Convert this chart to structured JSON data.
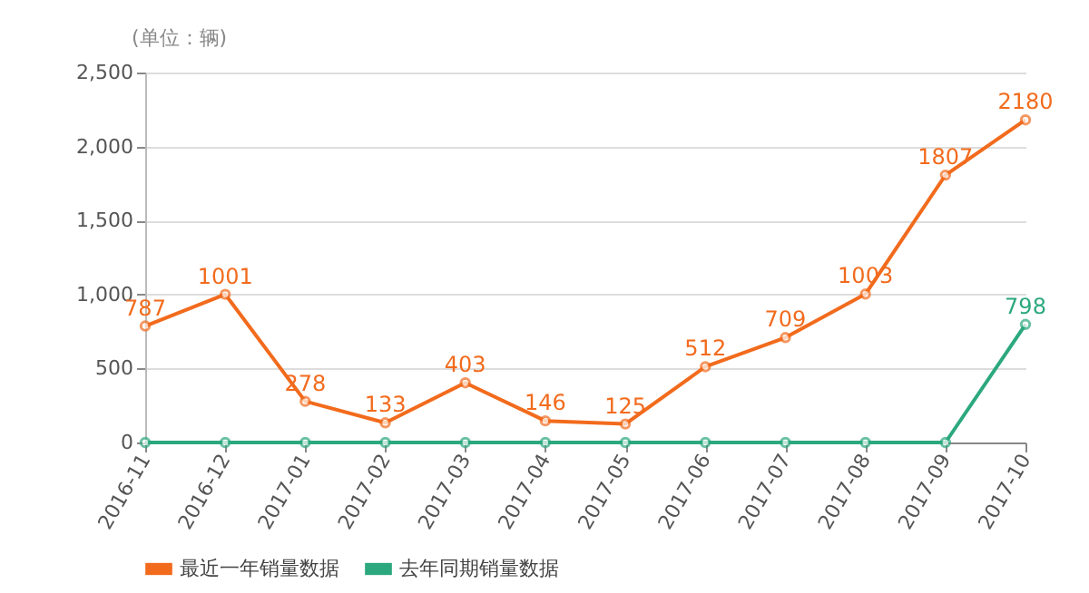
{
  "chart_data": {
    "type": "line",
    "ylabel": "(单位：辆)",
    "categories": [
      "2016-11",
      "2016-12",
      "2017-01",
      "2017-02",
      "2017-03",
      "2017-04",
      "2017-05",
      "2017-06",
      "2017-07",
      "2017-08",
      "2017-09",
      "2017-10"
    ],
    "series": [
      {
        "name": "最近一年销量数据",
        "color": "#f26b1d",
        "values": [
          787,
          1001,
          278,
          133,
          403,
          146,
          125,
          512,
          709,
          1003,
          1807,
          2180
        ],
        "value_labels": [
          "787",
          "1001",
          "278",
          "133",
          "403",
          "146",
          "125",
          "512",
          "709",
          "1003",
          "1807",
          "2180"
        ]
      },
      {
        "name": "去年同期销量数据",
        "color": "#2ca87f",
        "values": [
          0,
          0,
          0,
          0,
          0,
          0,
          0,
          0,
          0,
          0,
          0,
          798
        ],
        "value_labels": [
          null,
          null,
          null,
          null,
          null,
          null,
          null,
          null,
          null,
          null,
          null,
          "798"
        ]
      }
    ],
    "ylim": [
      0,
      2500
    ],
    "yticks": [
      0,
      {
        "value": 500,
        "label": "500"
      },
      {
        "value": 1000,
        "label": "1,000"
      },
      {
        "value": 1500,
        "label": "1,500"
      },
      {
        "value": 2000,
        "label": "2,000"
      },
      {
        "value": 2500,
        "label": "2,500"
      }
    ],
    "grid": "y",
    "legend": "bottom",
    "marker": "circle",
    "line_style": "solid"
  }
}
